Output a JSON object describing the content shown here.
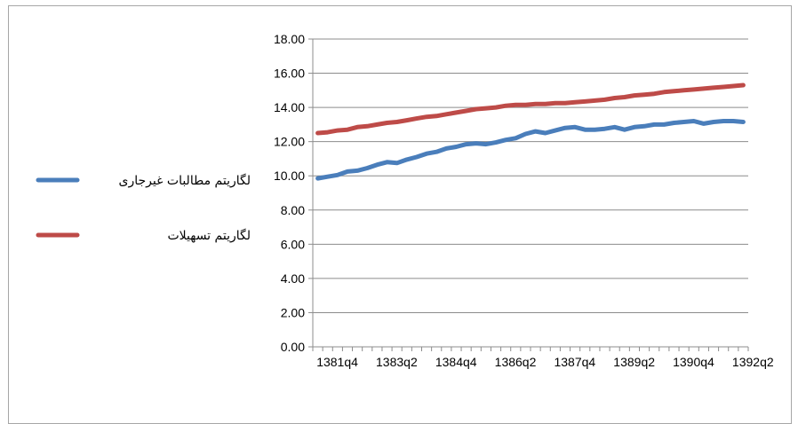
{
  "chart_data": {
    "type": "line",
    "title": "",
    "xlabel": "",
    "ylabel": "",
    "ylim": [
      0,
      18
    ],
    "y_ticks": [
      "0.00",
      "2.00",
      "4.00",
      "6.00",
      "8.00",
      "10.00",
      "12.00",
      "14.00",
      "16.00",
      "18.00"
    ],
    "x": [
      "1381q4",
      "1382q1",
      "1382q2",
      "1382q3",
      "1382q4",
      "1383q1",
      "1383q2",
      "1383q3",
      "1383q4",
      "1384q1",
      "1384q2",
      "1384q3",
      "1384q4",
      "1385q1",
      "1385q2",
      "1385q3",
      "1385q4",
      "1386q1",
      "1386q2",
      "1386q3",
      "1386q4",
      "1387q1",
      "1387q2",
      "1387q3",
      "1387q4",
      "1388q1",
      "1388q2",
      "1388q3",
      "1388q4",
      "1389q1",
      "1389q2",
      "1389q3",
      "1389q4",
      "1390q1",
      "1390q2",
      "1390q3",
      "1390q4",
      "1391q1",
      "1391q2",
      "1391q3",
      "1391q4",
      "1392q1",
      "1392q2",
      "1392q3"
    ],
    "x_tick_labels": [
      "1381q4",
      "1383q2",
      "1384q4",
      "1386q2",
      "1387q4",
      "1389q2",
      "1390q4",
      "1392q2"
    ],
    "grid": "horizontal",
    "legend_position": "left",
    "series": [
      {
        "name": "لگاریتم مطالبات غیرجاری",
        "color": "#4a7ebb",
        "values": [
          9.85,
          9.95,
          10.05,
          10.25,
          10.3,
          10.45,
          10.65,
          10.8,
          10.75,
          10.95,
          11.1,
          11.3,
          11.4,
          11.6,
          11.7,
          11.85,
          11.9,
          11.85,
          11.95,
          12.1,
          12.2,
          12.45,
          12.6,
          12.5,
          12.65,
          12.8,
          12.85,
          12.7,
          12.7,
          12.75,
          12.85,
          12.7,
          12.85,
          12.9,
          13.0,
          13.0,
          13.1,
          13.15,
          13.2,
          13.05,
          13.15,
          13.2,
          13.2,
          13.15
        ]
      },
      {
        "name": "لگاریتم تسهیلات",
        "color": "#be4b48",
        "values": [
          12.5,
          12.55,
          12.65,
          12.7,
          12.85,
          12.9,
          13.0,
          13.1,
          13.15,
          13.25,
          13.35,
          13.45,
          13.5,
          13.6,
          13.7,
          13.8,
          13.9,
          13.95,
          14.0,
          14.1,
          14.15,
          14.15,
          14.2,
          14.2,
          14.25,
          14.25,
          14.3,
          14.35,
          14.4,
          14.45,
          14.55,
          14.6,
          14.7,
          14.75,
          14.8,
          14.9,
          14.95,
          15.0,
          15.05,
          15.1,
          15.15,
          15.2,
          15.25,
          15.3
        ]
      }
    ]
  }
}
